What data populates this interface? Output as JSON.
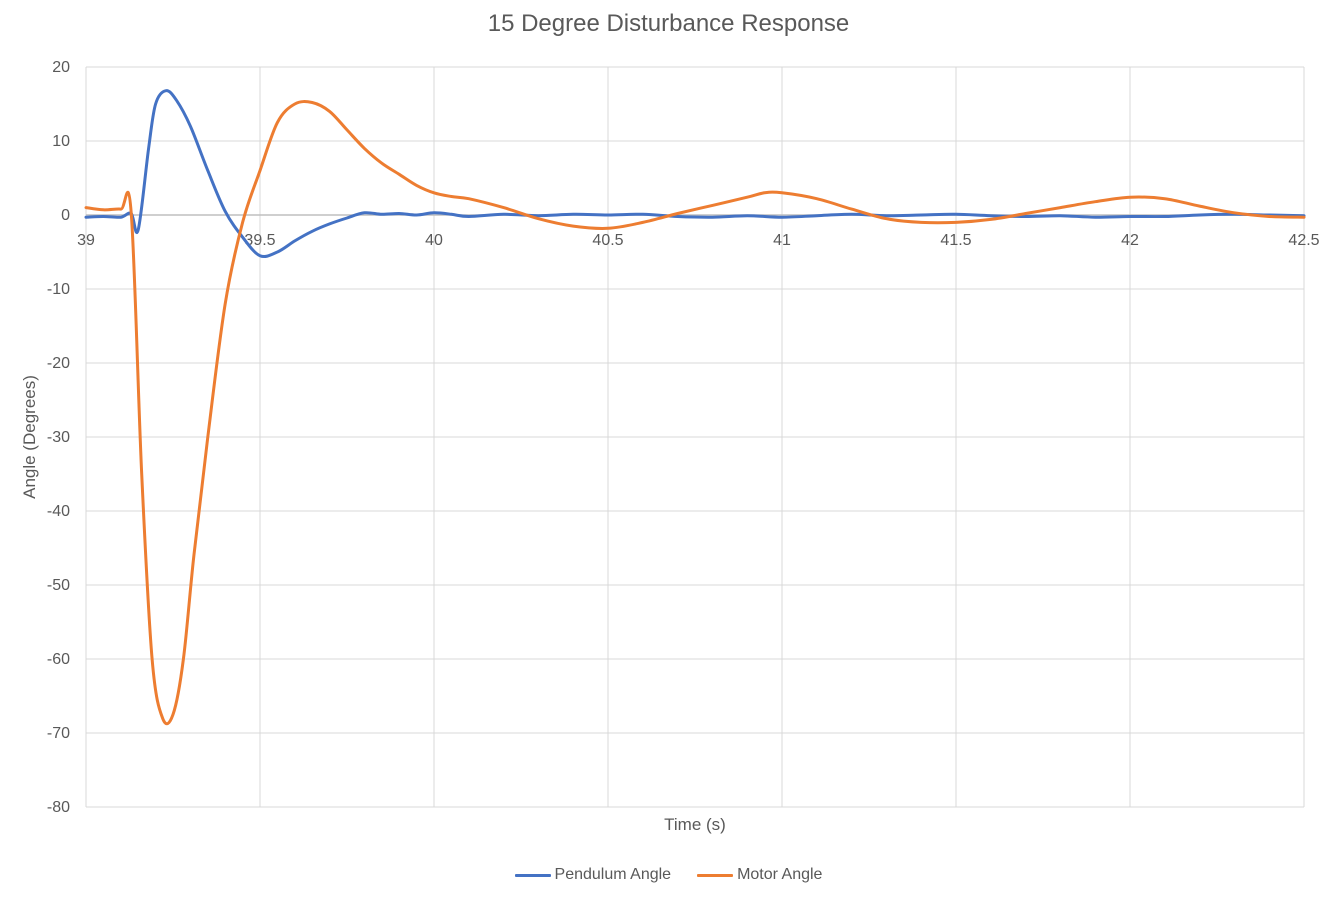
{
  "chart_data": {
    "type": "line",
    "title": "15 Degree Disturbance Response",
    "xlabel": "Time (s)",
    "ylabel": "Angle (Degrees)",
    "xlim": [
      39,
      42.5
    ],
    "ylim": [
      -80,
      20
    ],
    "xticks": [
      39,
      39.5,
      40,
      40.5,
      41,
      41.5,
      42,
      42.5
    ],
    "xtick_labels": [
      "39",
      "39.5",
      "40",
      "40.5",
      "41",
      "41.5",
      "42",
      "42.5"
    ],
    "yticks": [
      20,
      10,
      0,
      -10,
      -20,
      -30,
      -40,
      -50,
      -60,
      -70,
      -80
    ],
    "ytick_labels": [
      "20",
      "10",
      "0",
      "-10",
      "-20",
      "-30",
      "-40",
      "-50",
      "-60",
      "-70",
      "-80"
    ],
    "grid": true,
    "legend_position": "bottom",
    "series": [
      {
        "name": "Pendulum Angle",
        "color": "#4472C4",
        "x": [
          39.0,
          39.05,
          39.1,
          39.13,
          39.15,
          39.18,
          39.2,
          39.23,
          39.26,
          39.3,
          39.35,
          39.4,
          39.45,
          39.5,
          39.55,
          39.6,
          39.65,
          39.7,
          39.75,
          39.8,
          39.85,
          39.9,
          39.95,
          40.0,
          40.05,
          40.1,
          40.2,
          40.3,
          40.4,
          40.5,
          40.6,
          40.7,
          40.8,
          40.9,
          41.0,
          41.1,
          41.2,
          41.3,
          41.4,
          41.5,
          41.6,
          41.7,
          41.8,
          41.9,
          42.0,
          42.1,
          42.2,
          42.3,
          42.4,
          42.5
        ],
        "values": [
          -0.3,
          -0.2,
          -0.3,
          0.2,
          -2.0,
          9.0,
          15.0,
          16.8,
          15.5,
          12.0,
          6.0,
          0.5,
          -3.0,
          -5.5,
          -5.0,
          -3.5,
          -2.2,
          -1.2,
          -0.4,
          0.3,
          0.1,
          0.2,
          0.0,
          0.3,
          0.1,
          -0.2,
          0.1,
          -0.1,
          0.1,
          0.0,
          0.1,
          -0.2,
          -0.3,
          -0.1,
          -0.3,
          -0.1,
          0.1,
          -0.1,
          0.0,
          0.1,
          -0.1,
          -0.2,
          -0.1,
          -0.3,
          -0.2,
          -0.2,
          0.0,
          0.1,
          0.0,
          -0.1
        ]
      },
      {
        "name": "Motor Angle",
        "color": "#ED7D31",
        "x": [
          39.0,
          39.05,
          39.1,
          39.13,
          39.16,
          39.19,
          39.22,
          39.25,
          39.28,
          39.31,
          39.35,
          39.4,
          39.45,
          39.5,
          39.55,
          39.6,
          39.65,
          39.7,
          39.75,
          39.8,
          39.85,
          39.9,
          39.95,
          40.0,
          40.05,
          40.1,
          40.2,
          40.3,
          40.4,
          40.5,
          40.6,
          40.7,
          40.8,
          40.9,
          40.95,
          41.0,
          41.1,
          41.2,
          41.3,
          41.4,
          41.5,
          41.6,
          41.7,
          41.8,
          41.9,
          42.0,
          42.1,
          42.2,
          42.3,
          42.4,
          42.5
        ],
        "values": [
          1.0,
          0.7,
          0.8,
          0.3,
          -35.0,
          -60.0,
          -68.0,
          -67.5,
          -60.0,
          -46.0,
          -30.0,
          -12.0,
          -1.0,
          6.0,
          12.5,
          15.0,
          15.2,
          14.0,
          11.5,
          9.0,
          7.0,
          5.5,
          4.0,
          3.0,
          2.5,
          2.2,
          1.0,
          -0.5,
          -1.5,
          -1.8,
          -1.0,
          0.2,
          1.3,
          2.4,
          3.0,
          3.0,
          2.2,
          0.8,
          -0.5,
          -1.0,
          -1.0,
          -0.6,
          0.2,
          1.0,
          1.8,
          2.4,
          2.2,
          1.2,
          0.3,
          -0.2,
          -0.3
        ]
      }
    ]
  }
}
